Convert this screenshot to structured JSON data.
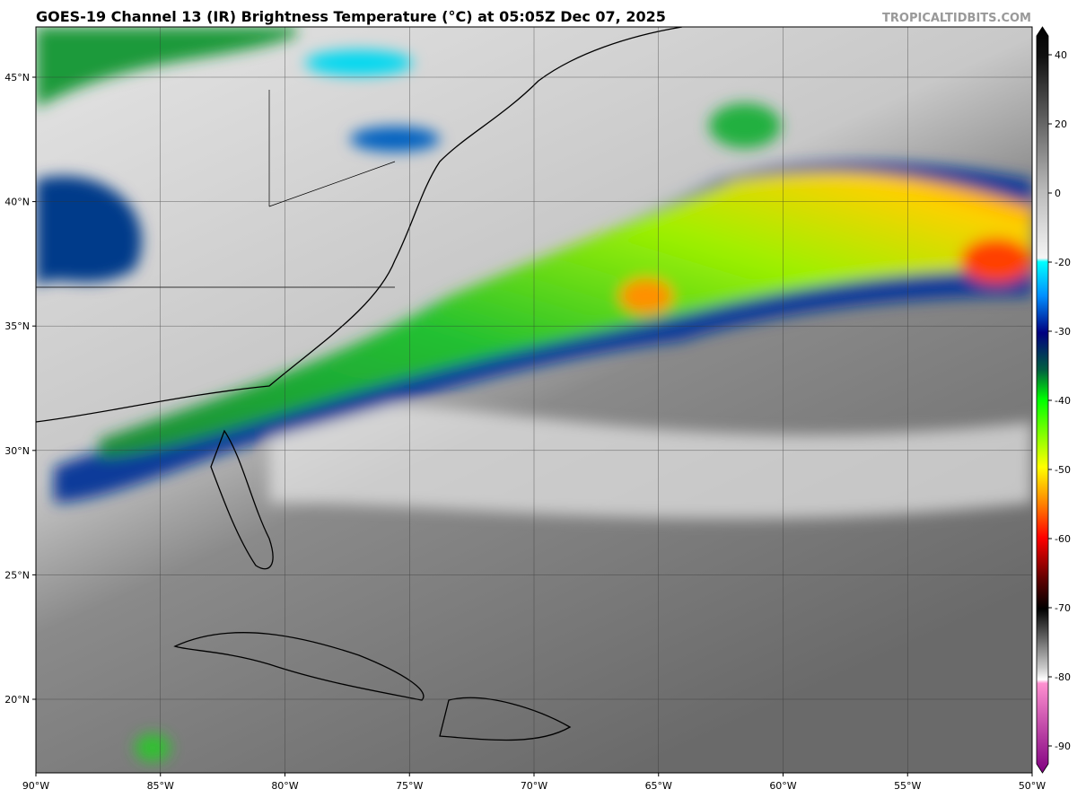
{
  "header": {
    "title": "GOES-19 Channel 13 (IR) Brightness Temperature (°C) at 05:05Z Dec 07, 2025",
    "watermark": "TROPICALTIDBITS.COM"
  },
  "map": {
    "longitude_labels": [
      "90°W",
      "85°W",
      "80°W",
      "75°W",
      "70°W",
      "65°W",
      "60°W",
      "55°W",
      "50°W"
    ],
    "latitude_labels": [
      "20°N",
      "25°N",
      "30°N",
      "35°N",
      "40°N",
      "45°N"
    ]
  },
  "colorbar": {
    "ticks": [
      40,
      20,
      0,
      -20,
      -30,
      -40,
      -50,
      -60,
      -70,
      -80,
      -90
    ]
  }
}
